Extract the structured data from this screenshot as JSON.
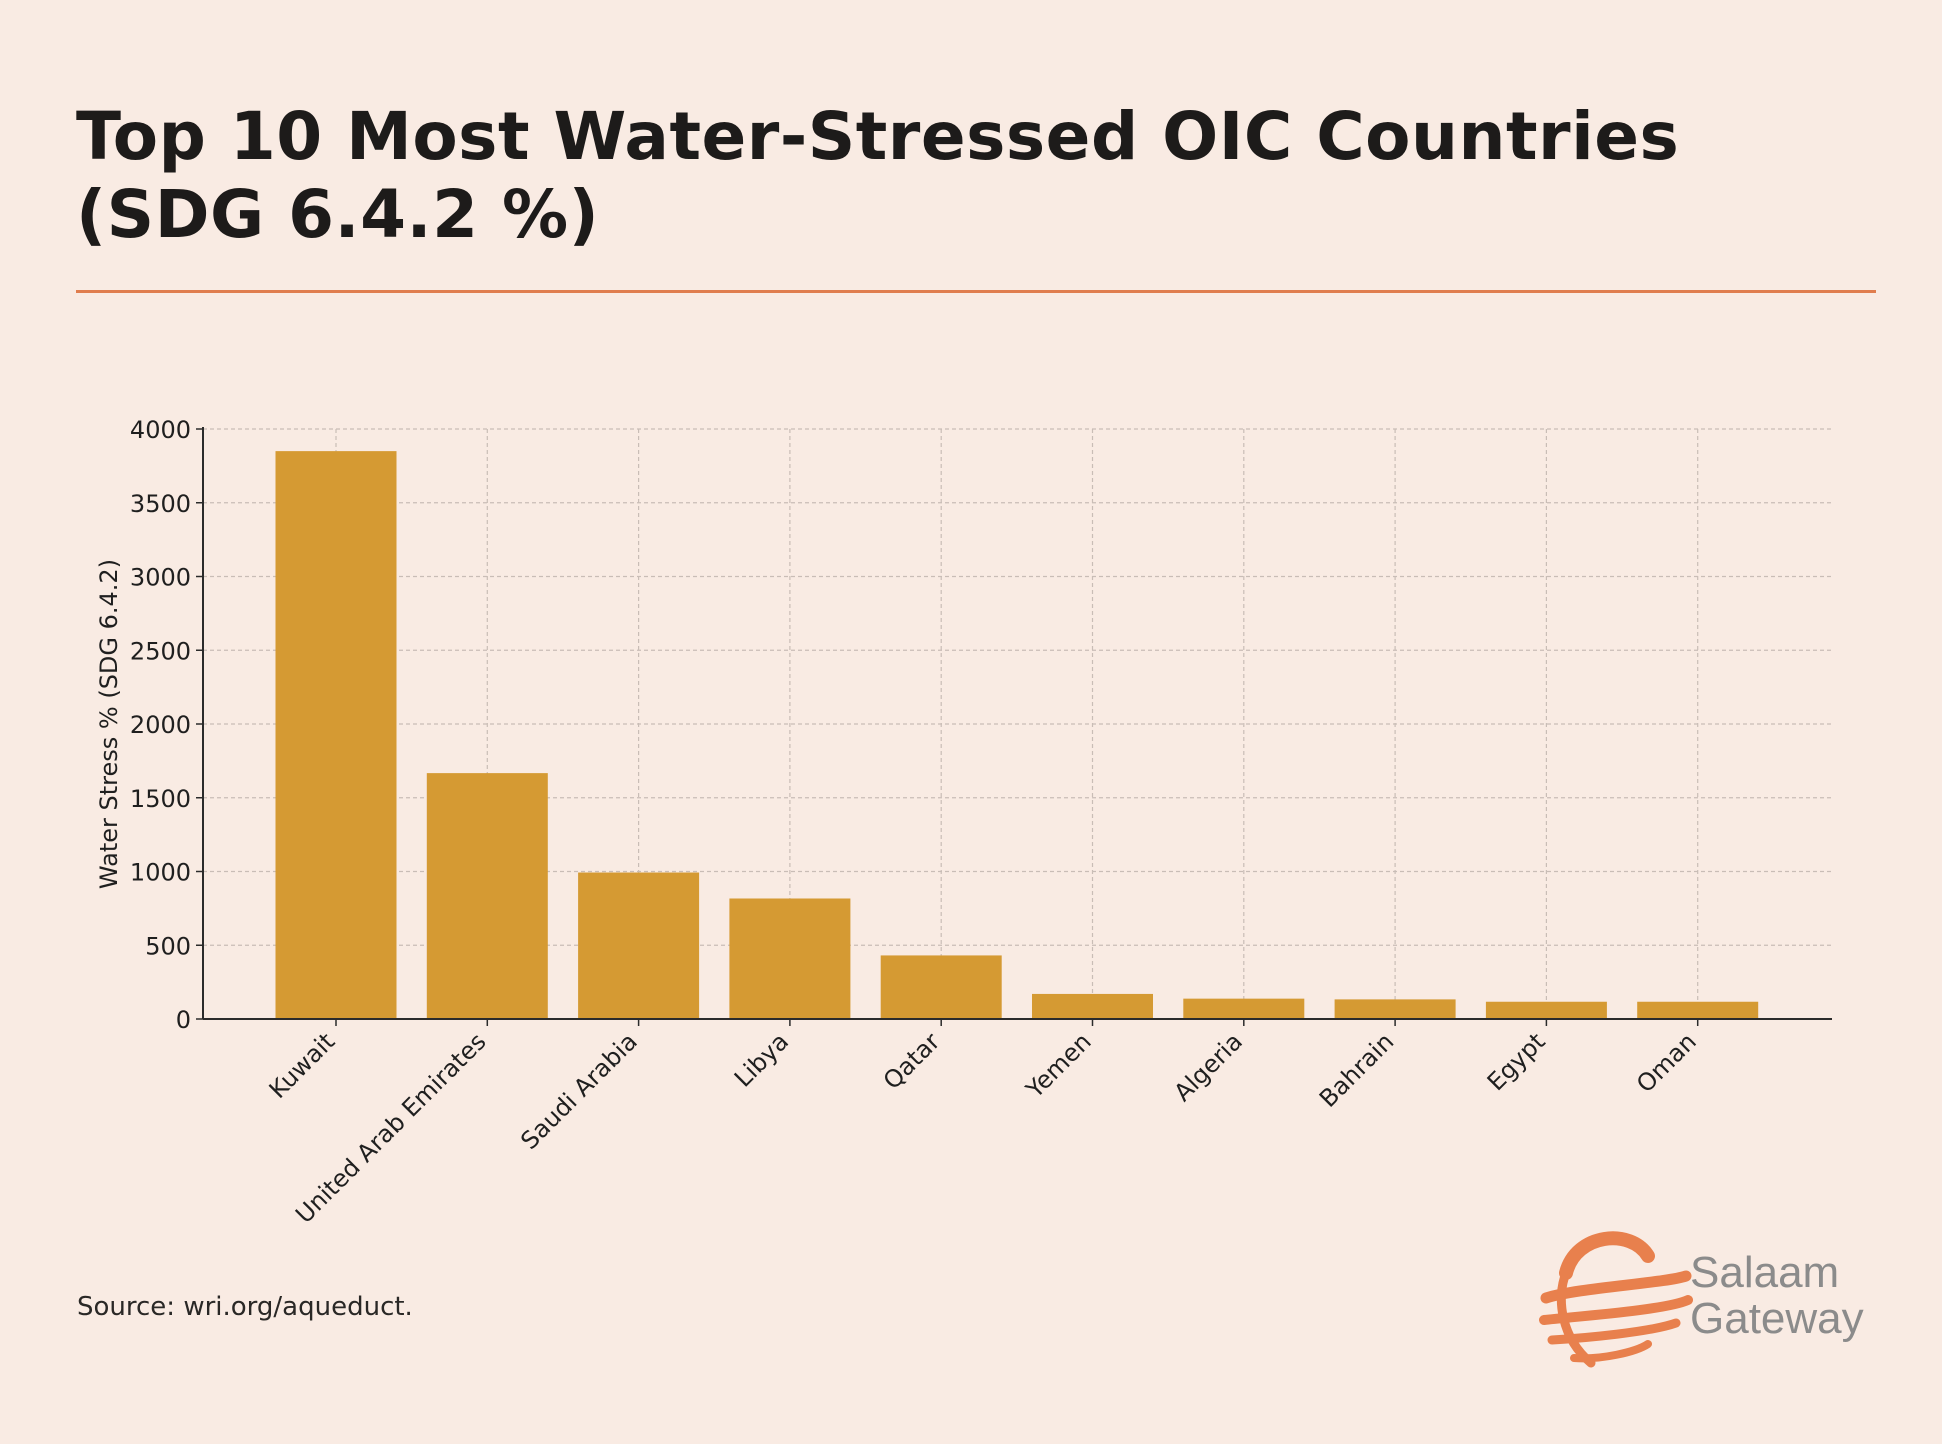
{
  "header": {
    "title_line1": "Top 10 Most Water-Stressed OIC Countries",
    "title_line2": "(SDG 6.4.2 %)"
  },
  "footer": {
    "source": "Source: wri.org/aqueduct."
  },
  "brand": {
    "name_line1": "Salaam",
    "name_line2": "Gateway",
    "logo_icon": "globe-wing-logo-icon",
    "logo_color": "#e8804d"
  },
  "colors": {
    "background": "#f9ebe3",
    "bar": "#d59a33",
    "rule": "#e07d4e",
    "grid": "#c9bdb6",
    "axis": "#2b2b2b"
  },
  "chart_data": {
    "type": "bar",
    "title": "",
    "xlabel": "",
    "ylabel": "Water Stress % (SDG 6.4.2)",
    "categories": [
      "Kuwait",
      "United Arab Emirates",
      "Saudi Arabia",
      "Libya",
      "Qatar",
      "Yemen",
      "Algeria",
      "Bahrain",
      "Egypt",
      "Oman"
    ],
    "values": [
      3850,
      1667,
      993,
      817,
      431,
      170,
      138,
      133,
      117,
      117
    ],
    "ylim": [
      0,
      4000
    ],
    "yticks": [
      0,
      500,
      1000,
      1500,
      2000,
      2500,
      3000,
      3500,
      4000
    ],
    "grid": true,
    "legend": "none"
  }
}
